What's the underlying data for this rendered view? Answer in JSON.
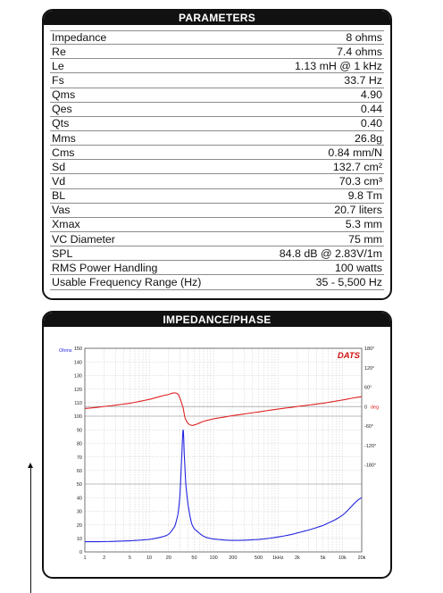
{
  "parameters": {
    "title": "PARAMETERS",
    "rows": [
      {
        "label": "Impedance",
        "value": "8 ohms"
      },
      {
        "label": "Re",
        "value": "7.4 ohms"
      },
      {
        "label": "Le",
        "value": "1.13 mH @ 1 kHz"
      },
      {
        "label": "Fs",
        "value": "33.7 Hz"
      },
      {
        "label": "Qms",
        "value": "4.90"
      },
      {
        "label": "Qes",
        "value": "0.44"
      },
      {
        "label": "Qts",
        "value": "0.40"
      },
      {
        "label": "Mms",
        "value": "26.8g"
      },
      {
        "label": "Cms",
        "value": "0.84 mm/N"
      },
      {
        "label": "Sd",
        "value": "132.7 cm²"
      },
      {
        "label": "Vd",
        "value": "70.3 cm³"
      },
      {
        "label": "BL",
        "value": "9.8 Tm"
      },
      {
        "label": "Vas",
        "value": "20.7 liters"
      },
      {
        "label": "Xmax",
        "value": "5.3 mm"
      },
      {
        "label": "VC Diameter",
        "value": "75 mm"
      },
      {
        "label": "SPL",
        "value": "84.8 dB @ 2.83V/1m"
      },
      {
        "label": "RMS Power Handling",
        "value": "100 watts"
      },
      {
        "label": "Usable Frequency Range (Hz)",
        "value": "35 - 5,500 Hz"
      }
    ]
  },
  "impedance_panel": {
    "title": "IMPEDANCE/PHASE",
    "logo_text": "DATS"
  },
  "colors": {
    "impedance": "#2424e0",
    "phase": "#e02020",
    "grid": "#c8c8c8",
    "frame": "#111111",
    "logo": "#d01010"
  },
  "chart_data": {
    "type": "line",
    "title": "",
    "x_scale": "log",
    "xlim": [
      1,
      20000
    ],
    "x_ticks": [
      1,
      2,
      5,
      10,
      20,
      50,
      100,
      200,
      500,
      1000,
      2000,
      5000,
      10000,
      20000
    ],
    "x_tick_labels": [
      "1",
      "2",
      "5",
      "10",
      "20",
      "50",
      "100",
      "200",
      "500",
      "1kHz",
      "2k",
      "5k",
      "10k",
      "20k"
    ],
    "left_axis": {
      "label": "Ohms",
      "ylim": [
        0,
        150
      ],
      "ticks": [
        0,
        10,
        20,
        30,
        40,
        50,
        60,
        70,
        80,
        90,
        100,
        110,
        120,
        130,
        140,
        150
      ]
    },
    "right_axis": {
      "label": "deg",
      "ylim": [
        -450,
        180
      ],
      "ticks": [
        180,
        120,
        60,
        0,
        -60,
        -120,
        -180
      ],
      "tick_labels": [
        "180°",
        "120°",
        "60°",
        "0",
        "-60°",
        "-120°",
        "-180°"
      ]
    },
    "grid": true,
    "series": [
      {
        "name": "Impedance",
        "axis": "left",
        "x": [
          1,
          2,
          5,
          10,
          15,
          20,
          25,
          28,
          30,
          32,
          33.7,
          35,
          37,
          40,
          45,
          50,
          70,
          100,
          200,
          500,
          1000,
          2000,
          5000,
          10000,
          20000
        ],
        "y": [
          7.5,
          7.6,
          8.2,
          9.2,
          10.8,
          13,
          19,
          28,
          42,
          70,
          90,
          72,
          50,
          35,
          22,
          17,
          11.5,
          9.5,
          8.5,
          9.2,
          11,
          14,
          19.5,
          27,
          40
        ]
      },
      {
        "name": "Phase",
        "axis": "right",
        "x": [
          1,
          2,
          5,
          10,
          20,
          25,
          28,
          30,
          33.7,
          36,
          40,
          45,
          50,
          70,
          100,
          200,
          500,
          1000,
          2000,
          5000,
          10000,
          20000
        ],
        "y": [
          -6,
          0,
          10,
          22,
          37,
          42,
          38,
          25,
          -5,
          -35,
          -52,
          -58,
          -57,
          -46,
          -38,
          -28,
          -17,
          -8,
          0,
          10,
          20,
          30
        ]
      }
    ]
  }
}
